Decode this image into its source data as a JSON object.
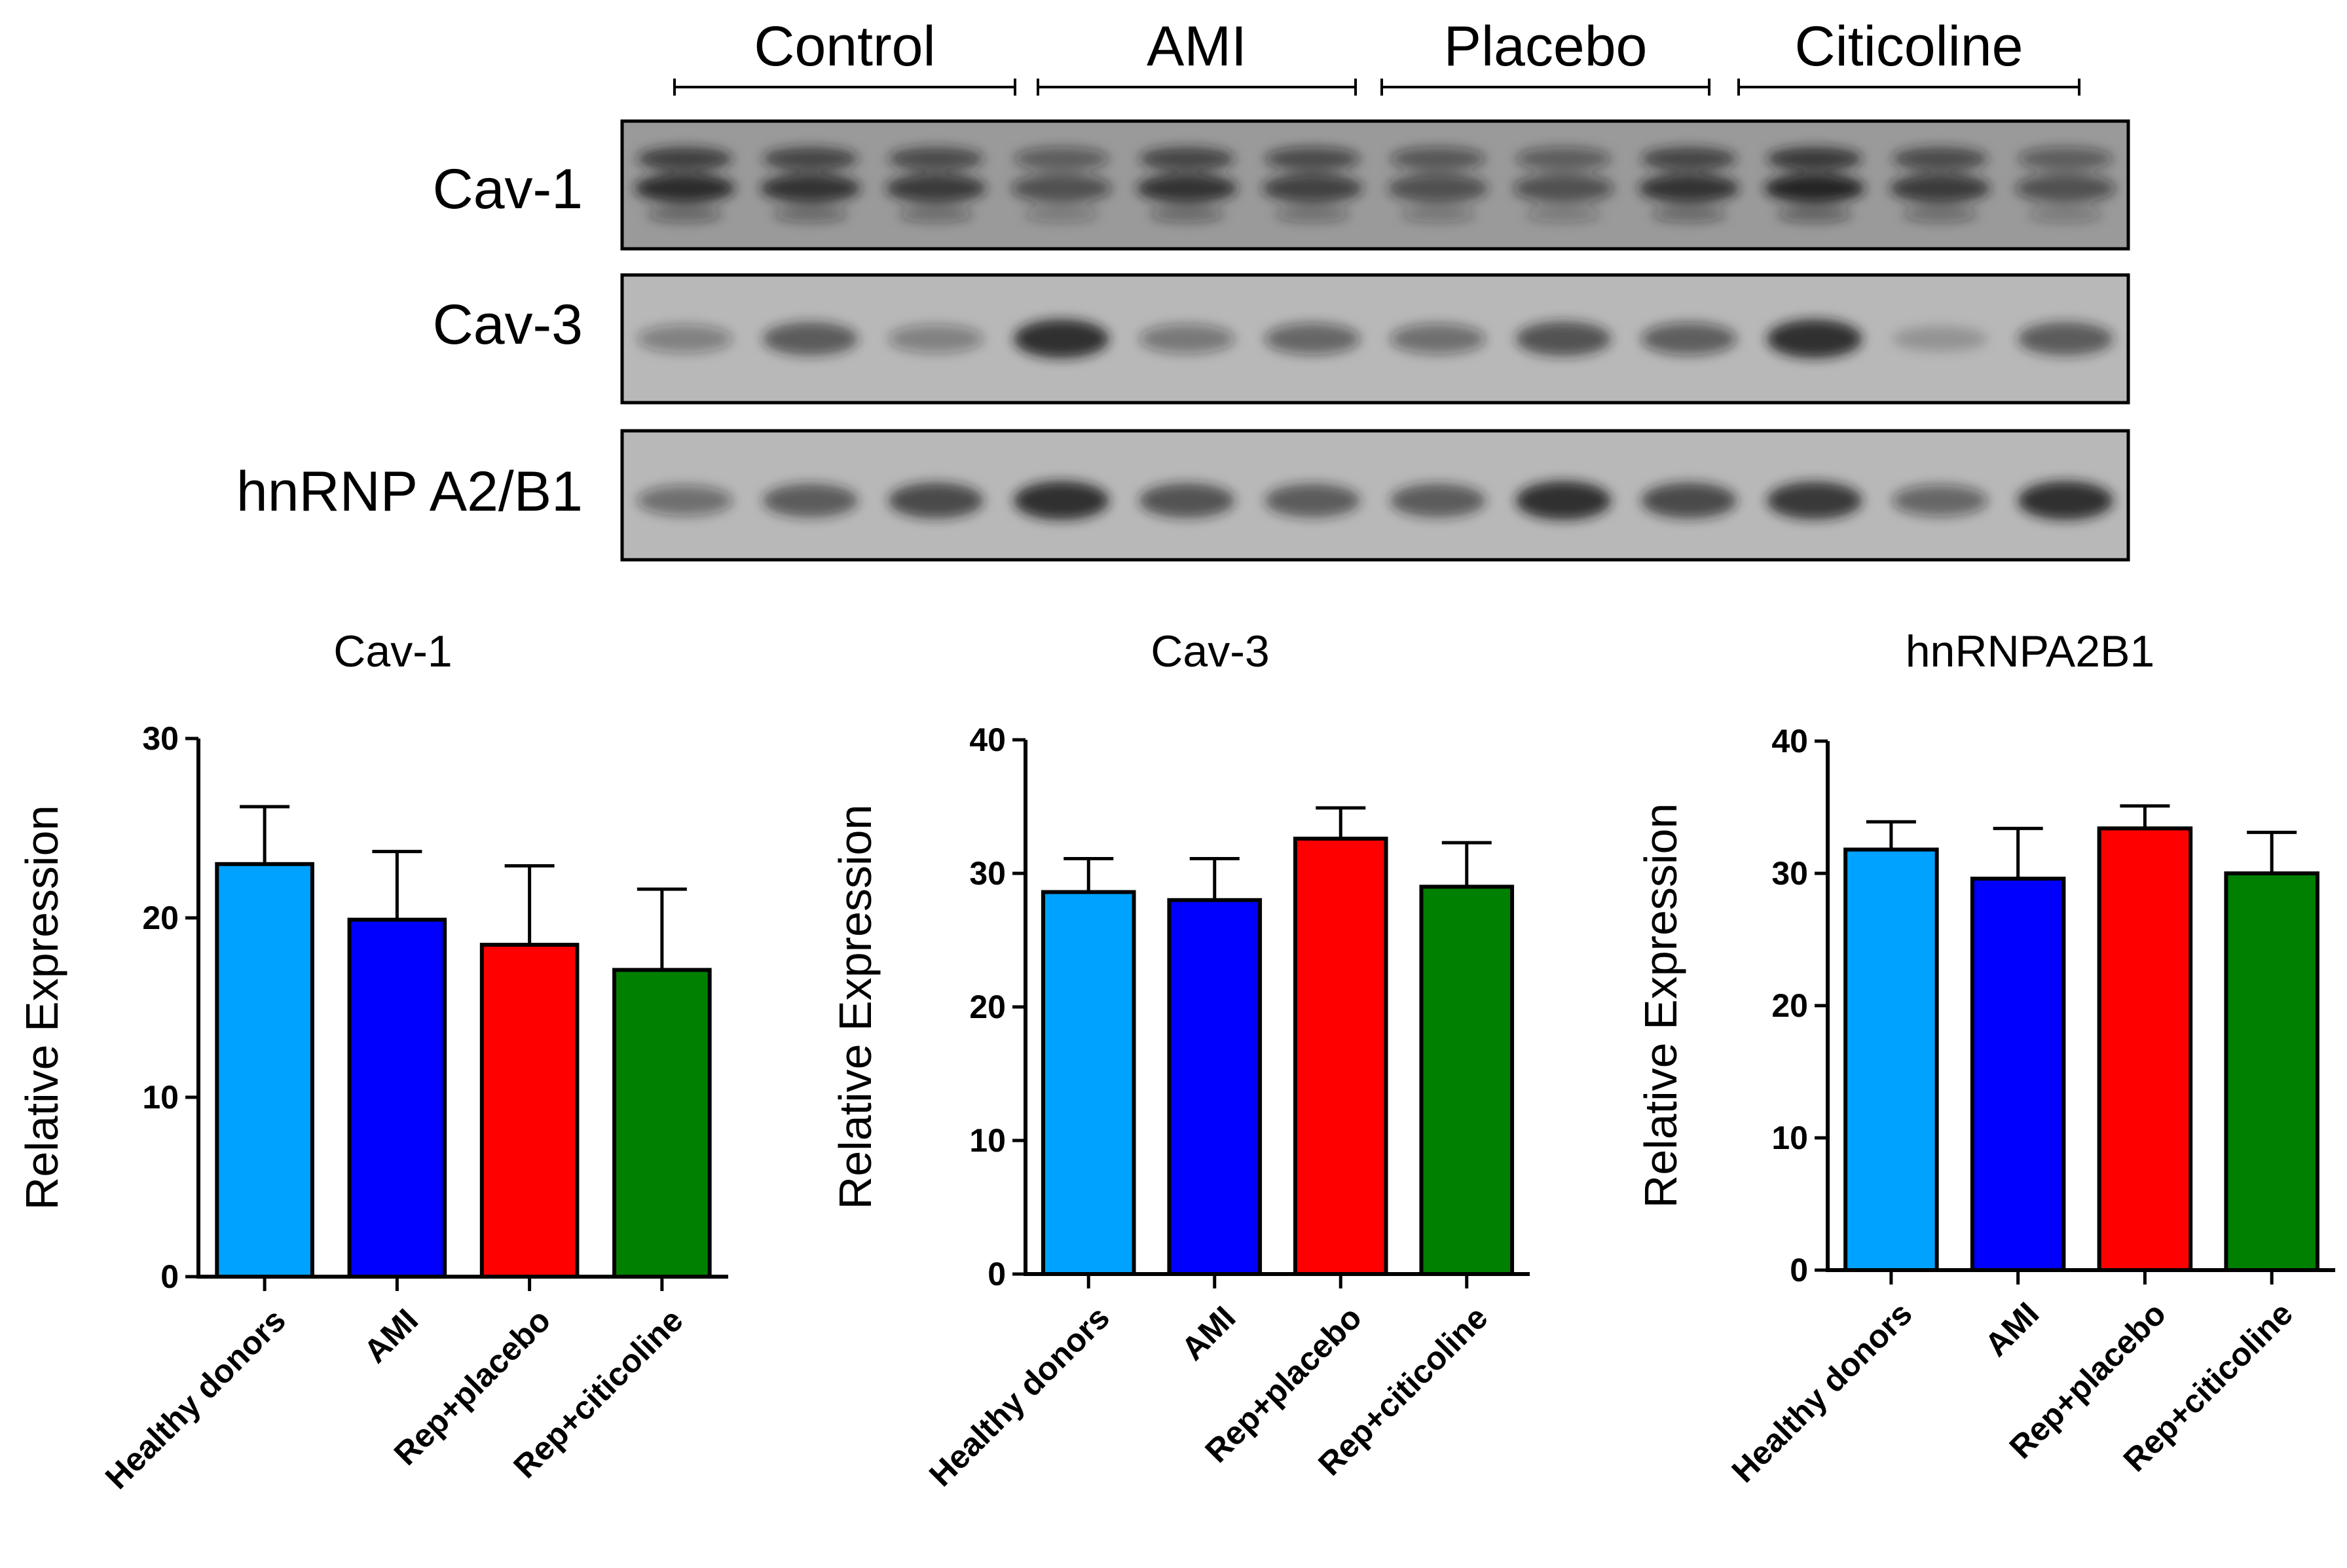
{
  "blot": {
    "groups": [
      "Control",
      "AMI",
      "Placebo",
      "Citicoline"
    ],
    "rows": [
      {
        "label": "Cav-1",
        "lanes": [
          0.85,
          0.8,
          0.75,
          0.55,
          0.8,
          0.7,
          0.6,
          0.55,
          0.8,
          0.9,
          0.75,
          0.55
        ]
      },
      {
        "label": "Cav-3",
        "lanes": [
          0.35,
          0.6,
          0.35,
          0.85,
          0.4,
          0.5,
          0.45,
          0.65,
          0.55,
          0.85,
          0.2,
          0.6
        ]
      },
      {
        "label": "hnRNP A2/B1",
        "lanes": [
          0.45,
          0.6,
          0.7,
          0.85,
          0.65,
          0.6,
          0.6,
          0.85,
          0.7,
          0.8,
          0.5,
          0.85
        ]
      }
    ],
    "colors": {
      "background": "#b8b8b8",
      "band": "#1a1a1a"
    }
  },
  "chart_data": [
    {
      "type": "bar",
      "title": "Cav-1",
      "ylabel": "Relative Expression",
      "xlabel": "",
      "categories": [
        "Healthy donors",
        "AMI",
        "Rep+placebo",
        "Rep+citicoline"
      ],
      "values": [
        23.0,
        19.9,
        18.5,
        17.1
      ],
      "errors": [
        3.2,
        3.8,
        4.4,
        4.5
      ],
      "colors": [
        "#00a2ff",
        "#0000ff",
        "#ff0000",
        "#008000"
      ],
      "ylim": [
        0,
        30
      ],
      "yticks": [
        0,
        10,
        20,
        30
      ]
    },
    {
      "type": "bar",
      "title": "Cav-3",
      "ylabel": "Relative Expression",
      "xlabel": "",
      "categories": [
        "Healthy donors",
        "AMI",
        "Rep+placebo",
        "Rep+citicoline"
      ],
      "values": [
        28.6,
        28.0,
        32.6,
        29.0
      ],
      "errors": [
        2.5,
        3.1,
        2.3,
        3.3
      ],
      "colors": [
        "#00a2ff",
        "#0000ff",
        "#ff0000",
        "#008000"
      ],
      "ylim": [
        0,
        40
      ],
      "yticks": [
        0,
        10,
        20,
        30,
        40
      ]
    },
    {
      "type": "bar",
      "title": "hnRNPA2B1",
      "ylabel": "Relative Expression",
      "xlabel": "",
      "categories": [
        "Healthy donors",
        "AMI",
        "Rep+placebo",
        "Rep+citicoline"
      ],
      "values": [
        31.8,
        29.6,
        33.4,
        30.0
      ],
      "errors": [
        2.1,
        3.8,
        1.7,
        3.1
      ],
      "colors": [
        "#00a2ff",
        "#0000ff",
        "#ff0000",
        "#008000"
      ],
      "ylim": [
        0,
        40
      ],
      "yticks": [
        0,
        10,
        20,
        30,
        40
      ]
    }
  ]
}
